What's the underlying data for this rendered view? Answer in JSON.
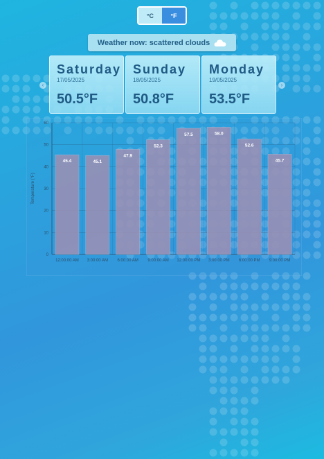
{
  "units": {
    "celsius_label": "°C",
    "fahrenheit_label": "°F",
    "selected": "°F"
  },
  "current": {
    "text": "Weather now: scattered clouds",
    "icon": "cloud-icon"
  },
  "forecast": [
    {
      "day": "Saturday",
      "date": "17/05/2025",
      "temp": "50.5°F"
    },
    {
      "day": "Sunday",
      "date": "18/05/2025",
      "temp": "50.8°F"
    },
    {
      "day": "Monday",
      "date": "19/05/2025",
      "temp": "53.5°F"
    }
  ],
  "nav": {
    "prev_icon": "chevron-left-icon",
    "next_icon": "chevron-right-icon"
  },
  "chart_data": {
    "type": "bar",
    "categories": [
      "12:00:00 AM",
      "3:00:00 AM",
      "6:00:00 AM",
      "9:00:00 AM",
      "12:00:00 PM",
      "3:00:00 PM",
      "6:00:00 PM",
      "9:00:00 PM"
    ],
    "values": [
      45.4,
      45.1,
      47.9,
      52.3,
      57.5,
      58.0,
      52.6,
      45.7
    ],
    "data_labels": [
      "45.4",
      "45.1",
      "47.9",
      "52.3",
      "57.5",
      "58.0",
      "52.6",
      "45.7"
    ],
    "ylabel": "Temperature (°F)",
    "ylim": [
      0,
      60
    ],
    "yticks": [
      0,
      10,
      20,
      30,
      40,
      50,
      60
    ],
    "grid": true,
    "colors": {
      "bar": "#9b8fb4"
    }
  }
}
